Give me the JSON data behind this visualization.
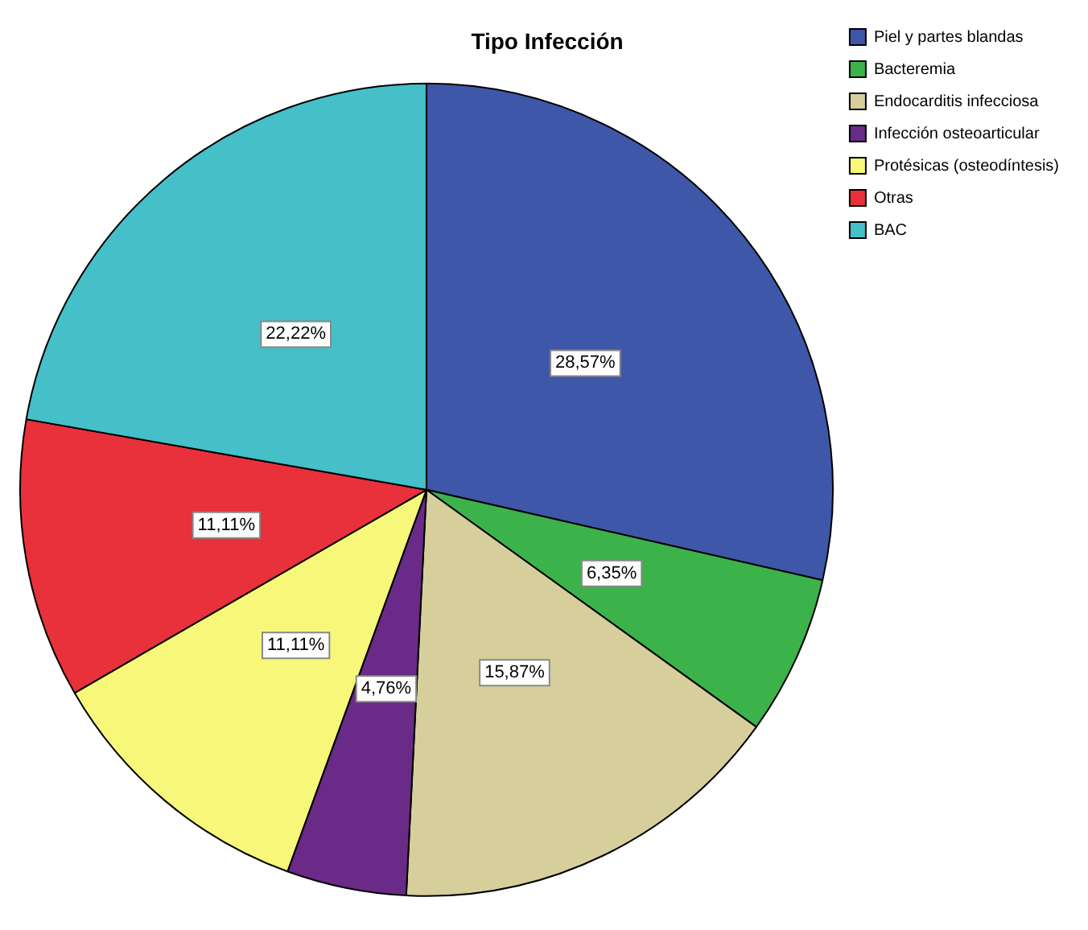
{
  "chart_data": {
    "type": "pie",
    "title": "Tipo Infección",
    "categories": [
      "Piel y partes blandas",
      "Bacteremia",
      "Endocarditis infecciosa",
      "Infección osteoarticular",
      "Protésicas (osteodíntesis)",
      "Otras",
      "BAC"
    ],
    "values": [
      28.57,
      6.35,
      15.87,
      4.76,
      11.11,
      11.11,
      22.22
    ],
    "colors": [
      "#3f57a8",
      "#3cb34a",
      "#d6cf9c",
      "#6a2a87",
      "#f7f77a",
      "#e8313a",
      "#45bfc8"
    ],
    "value_labels": [
      "28,57%",
      "6,35%",
      "15,87%",
      "4,76%",
      "11,11%",
      "11,11%",
      "22,22%"
    ],
    "legend": "top right"
  }
}
